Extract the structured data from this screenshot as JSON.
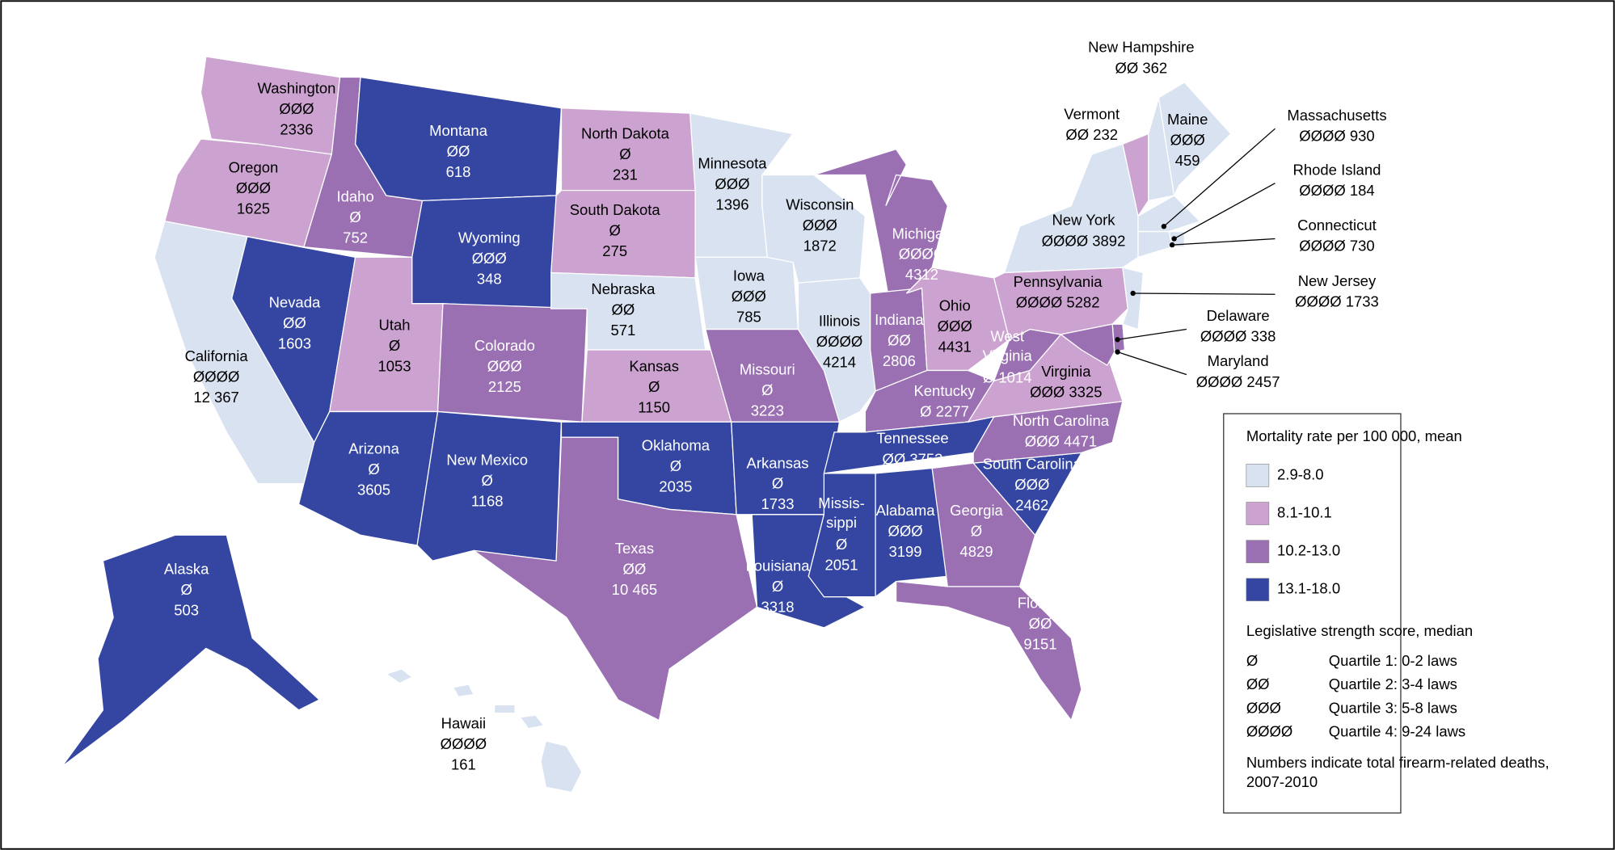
{
  "map": {
    "states": [
      {
        "name": "Washington",
        "score": "ØØØ",
        "deaths": "2336",
        "category": 1
      },
      {
        "name": "Oregon",
        "score": "ØØØ",
        "deaths": "1625",
        "category": 1
      },
      {
        "name": "California",
        "score": "ØØØØ",
        "deaths": "12 367",
        "category": 0
      },
      {
        "name": "Idaho",
        "score": "Ø",
        "deaths": "752",
        "category": 2
      },
      {
        "name": "Nevada",
        "score": "ØØ",
        "deaths": "1603",
        "category": 3
      },
      {
        "name": "Montana",
        "score": "ØØ",
        "deaths": "618",
        "category": 3
      },
      {
        "name": "Wyoming",
        "score": "ØØØ",
        "deaths": "348",
        "category": 3
      },
      {
        "name": "Utah",
        "score": "Ø",
        "deaths": "1053",
        "category": 1
      },
      {
        "name": "Arizona",
        "score": "Ø",
        "deaths": "3605",
        "category": 3
      },
      {
        "name": "Colorado",
        "score": "ØØØ",
        "deaths": "2125",
        "category": 2
      },
      {
        "name": "New Mexico",
        "score": "Ø",
        "deaths": "1168",
        "category": 3
      },
      {
        "name": "North Dakota",
        "score": "Ø",
        "deaths": "231",
        "category": 1
      },
      {
        "name": "South Dakota",
        "score": "Ø",
        "deaths": "275",
        "category": 1
      },
      {
        "name": "Nebraska",
        "score": "ØØ",
        "deaths": "571",
        "category": 0
      },
      {
        "name": "Kansas",
        "score": "Ø",
        "deaths": "1150",
        "category": 1
      },
      {
        "name": "Oklahoma",
        "score": "Ø",
        "deaths": "2035",
        "category": 3
      },
      {
        "name": "Texas",
        "score": "ØØ",
        "deaths": "10 465",
        "category": 2
      },
      {
        "name": "Minnesota",
        "score": "ØØØ",
        "deaths": "1396",
        "category": 0
      },
      {
        "name": "Iowa",
        "score": "ØØØ",
        "deaths": "785",
        "category": 0
      },
      {
        "name": "Missouri",
        "score": "Ø",
        "deaths": "3223",
        "category": 2
      },
      {
        "name": "Arkansas",
        "score": "Ø",
        "deaths": "1733",
        "category": 3
      },
      {
        "name": "Louisiana",
        "score": "Ø",
        "deaths": "3318",
        "category": 3
      },
      {
        "name": "Wisconsin",
        "score": "ØØØ",
        "deaths": "1872",
        "category": 0
      },
      {
        "name": "Illinois",
        "score": "ØØØØ",
        "deaths": "4214",
        "category": 0
      },
      {
        "name": "Michigan",
        "score": "ØØØØ",
        "deaths": "4312",
        "category": 2
      },
      {
        "name": "Indiana",
        "score": "ØØ",
        "deaths": "2806",
        "category": 2
      },
      {
        "name": "Ohio",
        "score": "ØØØ",
        "deaths": "4431",
        "category": 1
      },
      {
        "name": "Kentucky",
        "score": "Ø",
        "deaths": "2277",
        "category": 2
      },
      {
        "name": "Tennessee",
        "score": "ØØ",
        "deaths": "3753",
        "category": 3
      },
      {
        "name": "Missis-\nsippi",
        "score": "Ø",
        "deaths": "2051",
        "category": 3
      },
      {
        "name": "Alabama",
        "score": "ØØØ",
        "deaths": "3199",
        "category": 3
      },
      {
        "name": "Georgia",
        "score": "Ø",
        "deaths": "4829",
        "category": 2
      },
      {
        "name": "Florida",
        "score": "ØØ",
        "deaths": "9151",
        "category": 2
      },
      {
        "name": "South Carolina",
        "score": "ØØØ",
        "deaths": "2462",
        "category": 3
      },
      {
        "name": "North Carolina",
        "score": "ØØØ",
        "deaths": "4471",
        "category": 2
      },
      {
        "name": "Virginia",
        "score": "ØØØ",
        "deaths": "3325",
        "category": 1
      },
      {
        "name": "West\nVirginia",
        "score": "Ø",
        "deaths": "1014",
        "category": 2
      },
      {
        "name": "Pennsylvania",
        "score": "ØØØØ",
        "deaths": "5282",
        "category": 1
      },
      {
        "name": "New York",
        "score": "ØØØØ",
        "deaths": "3892",
        "category": 0
      },
      {
        "name": "Vermont",
        "score": "ØØ",
        "deaths": "232",
        "category": 1
      },
      {
        "name": "New Hampshire",
        "score": "ØØ",
        "deaths": "362",
        "category": 0
      },
      {
        "name": "Maine",
        "score": "ØØØ",
        "deaths": "459",
        "category": 0
      },
      {
        "name": "Massachusetts",
        "score": "ØØØØ",
        "deaths": "930",
        "category": 0
      },
      {
        "name": "Rhode Island",
        "score": "ØØØØ",
        "deaths": "184",
        "category": 0
      },
      {
        "name": "Connecticut",
        "score": "ØØØØ",
        "deaths": "730",
        "category": 0
      },
      {
        "name": "New Jersey",
        "score": "ØØØØ",
        "deaths": "1733",
        "category": 0
      },
      {
        "name": "Delaware",
        "score": "ØØØØ",
        "deaths": "338",
        "category": 2
      },
      {
        "name": "Maryland",
        "score": "ØØØØ",
        "deaths": "2457",
        "category": 2
      },
      {
        "name": "Alaska",
        "score": "Ø",
        "deaths": "503",
        "category": 3
      },
      {
        "name": "Hawaii",
        "score": "ØØØØ",
        "deaths": "161",
        "category": 0
      }
    ]
  },
  "legend": {
    "mortality_title": "Mortality rate per 100 000, mean",
    "categories": [
      {
        "label": "2.9-8.0",
        "color": "#d9e2f0"
      },
      {
        "label": "8.1-10.1",
        "color": "#cca3d0"
      },
      {
        "label": "10.2-13.0",
        "color": "#9a70b3"
      },
      {
        "label": "13.1-18.0",
        "color": "#3446a1"
      }
    ],
    "score_title": "Legislative strength score, median",
    "quartiles": [
      {
        "symbol": "Ø",
        "label": "Quartile 1: 0-2 laws"
      },
      {
        "symbol": "ØØ",
        "label": "Quartile 2: 3-4 laws"
      },
      {
        "symbol": "ØØØ",
        "label": "Quartile 3: 5-8 laws"
      },
      {
        "symbol": "ØØØØ",
        "label": "Quartile 4: 9-24 laws"
      }
    ],
    "note": "Numbers indicate total firearm-related deaths,\n2007-2010"
  }
}
